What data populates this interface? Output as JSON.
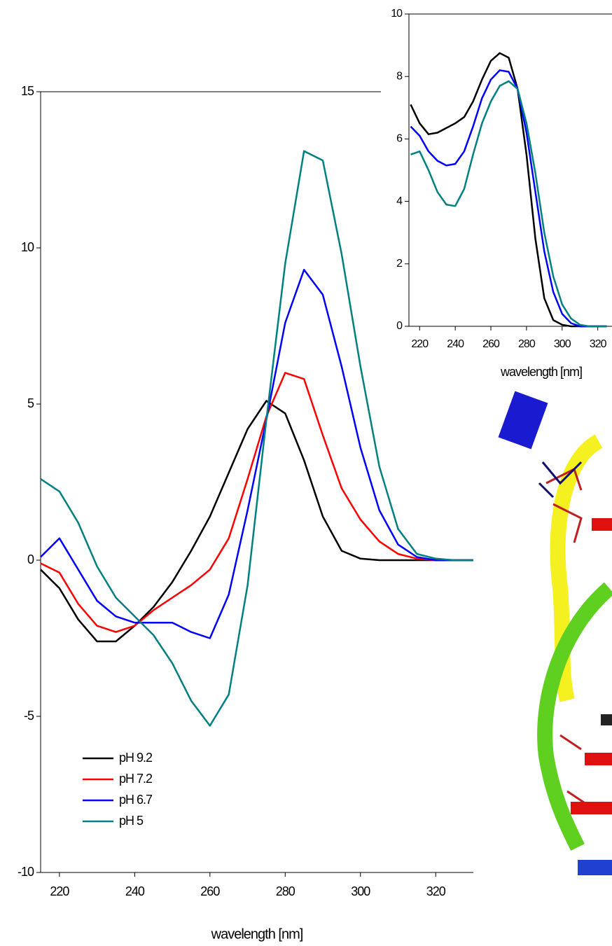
{
  "chart_data": [
    {
      "type": "line",
      "x_label": "wavelength [nm]",
      "x": [
        215,
        220,
        225,
        230,
        235,
        240,
        245,
        250,
        255,
        260,
        265,
        270,
        275,
        280,
        285,
        290,
        295,
        300,
        305,
        310,
        315,
        320,
        325,
        330
      ],
      "xlim": [
        215,
        330
      ],
      "xticks": [
        220,
        240,
        260,
        280,
        300,
        320
      ],
      "ylim": [
        -10,
        15
      ],
      "yticks": [
        -10,
        -5,
        0,
        5,
        10,
        15
      ],
      "legend": "lower left",
      "series": [
        {
          "name": "pH 9.2",
          "color": "#000000",
          "values": [
            -0.3,
            -0.9,
            -1.9,
            -2.6,
            -2.6,
            -2.1,
            -1.5,
            -0.7,
            0.3,
            1.4,
            2.8,
            4.2,
            5.1,
            4.7,
            3.2,
            1.4,
            0.3,
            0.05,
            0,
            0,
            0,
            0,
            0,
            0
          ]
        },
        {
          "name": "pH 7.2",
          "color": "#ff0000",
          "values": [
            -0.1,
            -0.4,
            -1.4,
            -2.1,
            -2.3,
            -2.1,
            -1.6,
            -1.2,
            -0.8,
            -0.3,
            0.7,
            2.6,
            4.6,
            6.0,
            5.8,
            4.0,
            2.3,
            1.3,
            0.6,
            0.2,
            0.05,
            0,
            0,
            0
          ]
        },
        {
          "name": "pH 6.7",
          "color": "#0000ff",
          "values": [
            0.1,
            0.7,
            -0.3,
            -1.3,
            -1.8,
            -2.0,
            -2.0,
            -2.0,
            -2.3,
            -2.5,
            -1.1,
            1.6,
            4.5,
            7.6,
            9.3,
            8.5,
            6.2,
            3.6,
            1.6,
            0.5,
            0.1,
            0,
            0,
            0
          ]
        },
        {
          "name": "pH 5",
          "color": "#008080",
          "values": [
            2.6,
            2.2,
            1.2,
            -0.2,
            -1.2,
            -1.8,
            -2.4,
            -3.3,
            -4.5,
            -5.3,
            -4.3,
            -0.8,
            4.5,
            9.5,
            13.1,
            12.8,
            9.8,
            6.2,
            3.0,
            1.0,
            0.2,
            0.05,
            0,
            0
          ]
        }
      ]
    },
    {
      "type": "line",
      "x_label": "wavelength [nm]",
      "x": [
        215,
        220,
        225,
        230,
        235,
        240,
        245,
        250,
        255,
        260,
        265,
        270,
        275,
        280,
        285,
        290,
        295,
        300,
        305,
        310,
        315,
        320,
        325
      ],
      "xlim": [
        214,
        328
      ],
      "xticks": [
        220,
        240,
        260,
        280,
        300,
        320
      ],
      "ylim": [
        0,
        10
      ],
      "yticks": [
        0,
        2,
        4,
        6,
        8,
        10
      ],
      "series": [
        {
          "color": "#000000",
          "values": [
            7.1,
            6.5,
            6.15,
            6.2,
            6.35,
            6.5,
            6.7,
            7.2,
            7.9,
            8.5,
            8.75,
            8.6,
            7.6,
            5.5,
            2.8,
            0.9,
            0.2,
            0.05,
            0,
            0,
            0,
            0,
            0
          ]
        },
        {
          "color": "#0000ff",
          "values": [
            6.4,
            6.1,
            5.6,
            5.3,
            5.15,
            5.2,
            5.6,
            6.4,
            7.3,
            7.9,
            8.2,
            8.15,
            7.6,
            6.2,
            4.3,
            2.4,
            1.1,
            0.4,
            0.1,
            0,
            0,
            0,
            0
          ]
        },
        {
          "color": "#008080",
          "values": [
            5.5,
            5.6,
            5.0,
            4.3,
            3.9,
            3.85,
            4.4,
            5.5,
            6.5,
            7.2,
            7.7,
            7.85,
            7.6,
            6.5,
            4.9,
            3.0,
            1.6,
            0.7,
            0.25,
            0.05,
            0,
            0,
            0
          ]
        }
      ]
    }
  ]
}
